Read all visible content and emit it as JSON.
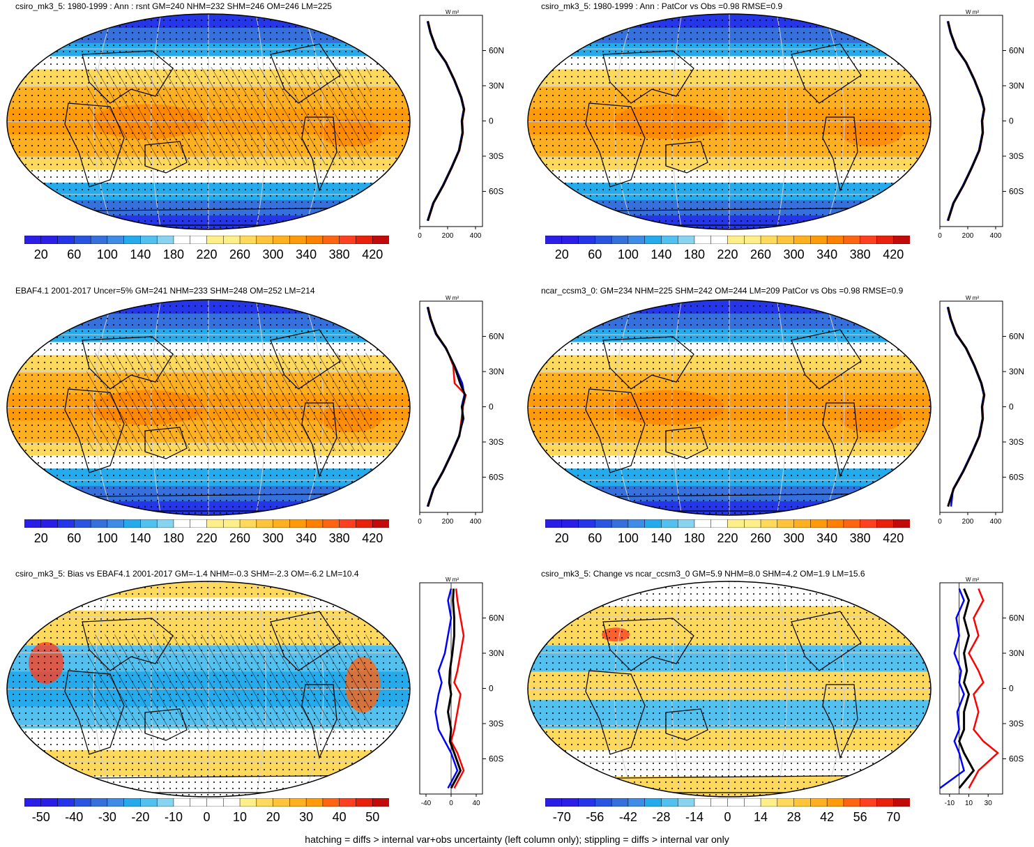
{
  "footer": "hatching = diffs > internal var+obs uncertainty (left column only); stippling = diffs > internal var only",
  "colors": {
    "scale": [
      "#2b1ee6",
      "#2436e8",
      "#2a55e0",
      "#3570dc",
      "#3e8ce6",
      "#25aaeb",
      "#52c1f0",
      "#88d4f0",
      "#ffffff",
      "#ffffff",
      "#ffef8a",
      "#ffd95c",
      "#ffc43c",
      "#ffb020",
      "#ff9a0a",
      "#ff8000",
      "#ff6410",
      "#ff4020",
      "#e8200c",
      "#c20a0a"
    ],
    "obs_line": "#ff0000",
    "model_line": "#0000ff",
    "mean_line": "#000000",
    "land": "#000000"
  },
  "panels": [
    {
      "title": "csiro_mk3_5: 1980-1999 : Ann : rsnt GM=240 NHM=232 SHM=246 OM=246 LM=225",
      "kind": "absolute",
      "hatched": true,
      "colorbar_labels": [
        "20",
        "60",
        "100",
        "140",
        "180",
        "220",
        "260",
        "300",
        "340",
        "380",
        "420"
      ],
      "profile_xticks": [
        "0",
        "200",
        "400"
      ],
      "profile_unit": "W m²",
      "profile_lat_labels": [
        "60N",
        "30N",
        "0",
        "30S",
        "60S"
      ]
    },
    {
      "title": "csiro_mk3_5: 1980-1999 : Ann : PatCor vs Obs =0.98 RMSE=0.9",
      "kind": "absolute",
      "hatched": false,
      "colorbar_labels": [
        "20",
        "60",
        "100",
        "140",
        "180",
        "220",
        "260",
        "300",
        "340",
        "380",
        "420"
      ],
      "profile_xticks": [
        "0",
        "200",
        "400"
      ],
      "profile_unit": "W m²",
      "profile_lat_labels": [
        "60N",
        "30N",
        "0",
        "30S",
        "60S"
      ]
    },
    {
      "title": "EBAF4.1 2001-2017 Uncer=5% GM=241 NHM=233 SHM=248 OM=252 LM=214",
      "kind": "absolute",
      "hatched": true,
      "colorbar_labels": [
        "20",
        "60",
        "100",
        "140",
        "180",
        "220",
        "260",
        "300",
        "340",
        "380",
        "420"
      ],
      "profile_xticks": [
        "0",
        "200",
        "400"
      ],
      "profile_unit": "W m²",
      "profile_lat_labels": [
        "60N",
        "30N",
        "0",
        "30S",
        "60S"
      ]
    },
    {
      "title": "ncar_ccsm3_0: GM=234 NHM=225 SHM=242 OM=244 LM=209 PatCor vs Obs =0.98 RMSE=0.9",
      "kind": "absolute",
      "hatched": false,
      "colorbar_labels": [
        "20",
        "60",
        "100",
        "140",
        "180",
        "220",
        "260",
        "300",
        "340",
        "380",
        "420"
      ],
      "profile_xticks": [
        "0",
        "200",
        "400"
      ],
      "profile_unit": "W m²",
      "profile_lat_labels": [
        "60N",
        "30N",
        "0",
        "30S",
        "60S"
      ]
    },
    {
      "title": "csiro_mk3_5: Bias vs EBAF4.1 2001-2017 GM=-1.4 NHM=-0.3 SHM=-2.3 OM=-6.2 LM=10.4",
      "kind": "bias",
      "hatched": true,
      "colorbar_labels": [
        "-50",
        "-40",
        "-30",
        "-20",
        "-10",
        "0",
        "10",
        "20",
        "30",
        "40",
        "50"
      ],
      "profile_xticks": [
        "-40",
        "0",
        "40"
      ],
      "profile_unit": "W m²",
      "profile_lat_labels": [
        "60N",
        "30N",
        "0",
        "30S",
        "60S"
      ]
    },
    {
      "title": "csiro_mk3_5: Change vs ncar_ccsm3_0 GM=5.9 NHM=8.0 SHM=4.2 OM=1.9 LM=15.6",
      "kind": "change",
      "hatched": false,
      "colorbar_labels": [
        "-70",
        "-56",
        "-42",
        "-28",
        "-14",
        "0",
        "14",
        "28",
        "42",
        "56",
        "70"
      ],
      "profile_xticks": [
        "-10",
        "10",
        "30"
      ],
      "profile_unit": "W m²",
      "profile_lat_labels": [
        "60N",
        "30N",
        "0",
        "30S",
        "60S"
      ]
    }
  ],
  "chart_data": [
    {
      "type": "line",
      "title": "csiro_mk3_5: 1980-1999 : Ann : rsnt GM=240 NHM=232 SHM=246 OM=246 LM=225",
      "xlim": [
        0,
        450
      ],
      "ylim": [
        -90,
        90
      ],
      "y_ticks": [
        60,
        30,
        0,
        -30,
        -60
      ],
      "series": [
        {
          "color": "red",
          "x": [
            60,
            100,
            170,
            230,
            285,
            310,
            305,
            320,
            300,
            250,
            190,
            120,
            80,
            60
          ],
          "y": [
            -85,
            -70,
            -55,
            -40,
            -25,
            -10,
            0,
            10,
            20,
            35,
            50,
            62,
            75,
            85
          ]
        },
        {
          "color": "blue",
          "x": [
            55,
            95,
            165,
            225,
            280,
            305,
            300,
            315,
            295,
            245,
            185,
            115,
            75,
            55
          ],
          "y": [
            -85,
            -70,
            -55,
            -40,
            -25,
            -10,
            0,
            10,
            20,
            35,
            50,
            62,
            75,
            85
          ]
        },
        {
          "color": "black",
          "x": [
            58,
            98,
            168,
            228,
            283,
            308,
            303,
            318,
            298,
            248,
            188,
            118,
            78,
            58
          ],
          "y": [
            -85,
            -70,
            -55,
            -40,
            -25,
            -10,
            0,
            10,
            20,
            35,
            50,
            62,
            75,
            85
          ]
        }
      ]
    },
    {
      "type": "line",
      "title": "csiro_mk3_5: 1980-1999 : Ann : PatCor vs Obs =0.98 RMSE=0.9",
      "xlim": [
        0,
        450
      ],
      "ylim": [
        -90,
        90
      ],
      "y_ticks": [
        60,
        30,
        0,
        -30,
        -60
      ],
      "series": [
        {
          "color": "red",
          "x": [
            60,
            100,
            170,
            230,
            285,
            310,
            305,
            320,
            300,
            250,
            190,
            120,
            80,
            60
          ],
          "y": [
            -85,
            -70,
            -55,
            -40,
            -25,
            -10,
            0,
            10,
            20,
            35,
            50,
            62,
            75,
            85
          ]
        },
        {
          "color": "blue",
          "x": [
            55,
            95,
            165,
            225,
            280,
            305,
            300,
            315,
            295,
            245,
            185,
            115,
            75,
            55
          ],
          "y": [
            -85,
            -70,
            -55,
            -40,
            -25,
            -10,
            0,
            10,
            20,
            35,
            50,
            62,
            75,
            85
          ]
        },
        {
          "color": "black",
          "x": [
            58,
            98,
            168,
            228,
            283,
            308,
            303,
            318,
            298,
            248,
            188,
            118,
            78,
            58
          ],
          "y": [
            -85,
            -70,
            -55,
            -40,
            -25,
            -10,
            0,
            10,
            20,
            35,
            50,
            62,
            75,
            85
          ]
        }
      ]
    },
    {
      "type": "line",
      "title": "EBAF4.1 2001-2017 Uncer=5% GM=241 NHM=233 SHM=248 OM=252 LM=214",
      "xlim": [
        0,
        450
      ],
      "ylim": [
        -90,
        90
      ],
      "y_ticks": [
        60,
        30,
        0,
        -30,
        -60
      ],
      "series": [
        {
          "color": "red",
          "x": [
            60,
            100,
            170,
            230,
            285,
            300,
            310,
            330,
            250,
            240,
            190,
            120,
            80,
            60
          ],
          "y": [
            -85,
            -70,
            -55,
            -40,
            -25,
            -10,
            0,
            10,
            20,
            35,
            50,
            62,
            75,
            85
          ]
        },
        {
          "color": "blue",
          "x": [
            55,
            95,
            165,
            225,
            280,
            315,
            300,
            320,
            305,
            250,
            185,
            115,
            75,
            55
          ],
          "y": [
            -85,
            -70,
            -55,
            -40,
            -25,
            -10,
            0,
            10,
            20,
            35,
            50,
            62,
            75,
            85
          ]
        },
        {
          "color": "black",
          "x": [
            58,
            98,
            168,
            228,
            283,
            308,
            305,
            325,
            290,
            248,
            188,
            118,
            78,
            58
          ],
          "y": [
            -85,
            -70,
            -55,
            -40,
            -25,
            -10,
            0,
            10,
            20,
            35,
            50,
            62,
            75,
            85
          ]
        }
      ]
    },
    {
      "type": "line",
      "title": "ncar_ccsm3_0: GM=234 NHM=225 SHM=242 OM=244 LM=209 PatCor vs Obs =0.98 RMSE=0.9",
      "xlim": [
        0,
        450
      ],
      "ylim": [
        -90,
        90
      ],
      "y_ticks": [
        60,
        30,
        0,
        -30,
        -60
      ],
      "series": [
        {
          "color": "red",
          "x": [
            60,
            100,
            170,
            230,
            285,
            310,
            305,
            320,
            300,
            250,
            190,
            120,
            80,
            60
          ],
          "y": [
            -85,
            -70,
            -55,
            -40,
            -25,
            -10,
            0,
            10,
            20,
            35,
            50,
            62,
            75,
            85
          ]
        },
        {
          "color": "blue",
          "x": [
            80,
            95,
            165,
            225,
            280,
            305,
            300,
            315,
            295,
            245,
            185,
            115,
            75,
            55
          ],
          "y": [
            -85,
            -70,
            -55,
            -40,
            -25,
            -10,
            0,
            10,
            20,
            35,
            50,
            62,
            75,
            85
          ]
        },
        {
          "color": "black",
          "x": [
            58,
            98,
            168,
            228,
            283,
            308,
            303,
            318,
            298,
            248,
            188,
            118,
            78,
            58
          ],
          "y": [
            -85,
            -70,
            -55,
            -40,
            -25,
            -10,
            0,
            10,
            20,
            35,
            50,
            62,
            75,
            85
          ]
        }
      ]
    },
    {
      "type": "line",
      "title": "csiro_mk3_5: Bias vs EBAF4.1 2001-2017 GM=-1.4 NHM=-0.3 SHM=-2.3 OM=-6.2 LM=10.4",
      "xlim": [
        -50,
        50
      ],
      "ylim": [
        -90,
        90
      ],
      "y_ticks": [
        60,
        30,
        0,
        -30,
        -60
      ],
      "series": [
        {
          "color": "red",
          "x": [
            5,
            20,
            10,
            0,
            5,
            10,
            15,
            5,
            10,
            15,
            20,
            15,
            10,
            8
          ],
          "y": [
            -85,
            -70,
            -55,
            -45,
            -35,
            -20,
            -5,
            5,
            15,
            30,
            45,
            60,
            75,
            85
          ]
        },
        {
          "color": "blue",
          "x": [
            -5,
            10,
            0,
            -10,
            -20,
            -25,
            -20,
            -15,
            -20,
            -10,
            -5,
            0,
            -5,
            0
          ],
          "y": [
            -85,
            -70,
            -55,
            -45,
            -35,
            -20,
            -5,
            5,
            15,
            30,
            45,
            60,
            75,
            85
          ]
        },
        {
          "color": "black",
          "x": [
            0,
            15,
            5,
            -2,
            0,
            -5,
            0,
            -3,
            -2,
            2,
            5,
            5,
            3,
            4
          ],
          "y": [
            -85,
            -70,
            -55,
            -45,
            -35,
            -20,
            -5,
            5,
            15,
            30,
            45,
            60,
            75,
            85
          ]
        }
      ]
    },
    {
      "type": "line",
      "title": "csiro_mk3_5: Change vs ncar_ccsm3_0 GM=5.9 NHM=8.0 SHM=4.2 OM=1.9 LM=15.6",
      "xlim": [
        -20,
        45
      ],
      "ylim": [
        -90,
        90
      ],
      "y_ticks": [
        60,
        30,
        0,
        -30,
        -60
      ],
      "series": [
        {
          "color": "red",
          "x": [
            10,
            20,
            40,
            25,
            15,
            20,
            15,
            25,
            20,
            10,
            20,
            15,
            25,
            20
          ],
          "y": [
            -85,
            -70,
            -55,
            -45,
            -35,
            -20,
            -5,
            5,
            15,
            30,
            45,
            60,
            75,
            85
          ]
        },
        {
          "color": "blue",
          "x": [
            -20,
            5,
            0,
            -5,
            0,
            -2,
            5,
            0,
            2,
            -5,
            0,
            -3,
            5,
            0
          ],
          "y": [
            -85,
            -70,
            -55,
            -45,
            -35,
            -20,
            -5,
            5,
            15,
            30,
            45,
            60,
            75,
            85
          ]
        },
        {
          "color": "black",
          "x": [
            0,
            15,
            5,
            0,
            5,
            5,
            10,
            5,
            8,
            5,
            10,
            5,
            10,
            5
          ],
          "y": [
            -85,
            -70,
            -55,
            -45,
            -35,
            -20,
            -5,
            5,
            15,
            30,
            45,
            60,
            75,
            85
          ]
        }
      ]
    }
  ]
}
